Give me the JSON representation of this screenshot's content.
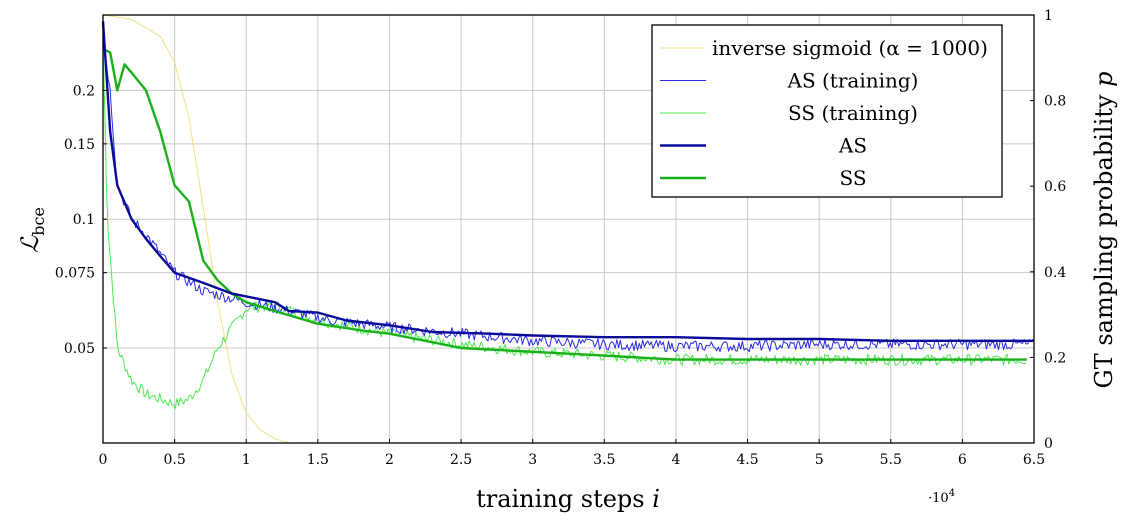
{
  "chart_data": {
    "type": "line",
    "title": "",
    "xlabel": "training steps i",
    "xlabel_plain": "training steps ",
    "xlabel_var": "i",
    "x_multiplier": "·10",
    "x_multiplier_exp": "4",
    "ylabel_left_main": "ℒ",
    "ylabel_left_sub": "bce",
    "ylabel_right": "GT sampling probability p",
    "ylabel_right_plain": "GT sampling probability ",
    "ylabel_right_var": "p",
    "x_range": [
      0,
      6.5
    ],
    "y_left_scale": "log",
    "y_left_range": [
      0.03,
      0.3
    ],
    "y_right_range": [
      0,
      1
    ],
    "x_ticks": [
      0,
      0.5,
      1,
      1.5,
      2,
      2.5,
      3,
      3.5,
      4,
      4.5,
      5,
      5.5,
      6,
      6.5
    ],
    "x_tick_labels": [
      "0",
      "0.5",
      "1",
      "1.5",
      "2",
      "2.5",
      "3",
      "3.5",
      "4",
      "4.5",
      "5",
      "5.5",
      "6",
      "6.5"
    ],
    "y_left_ticks": [
      0.05,
      0.075,
      0.1,
      0.15,
      0.2
    ],
    "y_left_tick_labels": [
      "0.05",
      "0.075",
      "0.1",
      "0.15",
      "0.2"
    ],
    "y_right_ticks": [
      0,
      0.2,
      0.4,
      0.6,
      0.8,
      1
    ],
    "y_right_tick_labels": [
      "0",
      "0.2",
      "0.4",
      "0.6",
      "0.8",
      "1"
    ],
    "grid": true,
    "legend_position": "top-right",
    "legend": [
      {
        "label": "inverse sigmoid (α = 1000)",
        "color": "#f0e080",
        "weight": "thin"
      },
      {
        "label": "AS (training)",
        "color": "#2a2ae8",
        "weight": "thin"
      },
      {
        "label": "SS (training)",
        "color": "#4ee84e",
        "weight": "thin"
      },
      {
        "label": "AS",
        "color": "#0a0a9a",
        "weight": "thick"
      },
      {
        "label": "SS",
        "color": "#1ab01a",
        "weight": "thick"
      }
    ],
    "series": [
      {
        "name": "inverse sigmoid (α = 1000)",
        "axis": "right",
        "color": "#f0e080",
        "alpha": 1000,
        "x": [
          0,
          0.2,
          0.4,
          0.5,
          0.6,
          0.7,
          0.8,
          0.9,
          1.0,
          1.1,
          1.2,
          1.3,
          6.5
        ],
        "values": [
          1.0,
          0.99,
          0.95,
          0.89,
          0.76,
          0.55,
          0.33,
          0.16,
          0.07,
          0.03,
          0.01,
          0.0,
          0.0
        ]
      },
      {
        "name": "AS (training)",
        "axis": "left",
        "color": "#2a2ae8",
        "noisy": true,
        "x": [
          0,
          0.05,
          0.1,
          0.2,
          0.3,
          0.5,
          0.7,
          1.0,
          1.3,
          1.6,
          2.0,
          2.5,
          3.0,
          3.5,
          4.0,
          4.5,
          5.0,
          5.5,
          6.0,
          6.5
        ],
        "values": [
          0.27,
          0.2,
          0.12,
          0.1,
          0.092,
          0.075,
          0.068,
          0.064,
          0.061,
          0.058,
          0.056,
          0.054,
          0.052,
          0.051,
          0.0505,
          0.0505,
          0.051,
          0.051,
          0.051,
          0.051
        ]
      },
      {
        "name": "SS (training)",
        "axis": "left",
        "color": "#4ee84e",
        "noisy": true,
        "x": [
          0,
          0.03,
          0.1,
          0.2,
          0.3,
          0.4,
          0.5,
          0.6,
          0.7,
          0.8,
          1.0,
          1.2,
          1.5,
          2.0,
          2.5,
          3.0,
          3.5,
          4.0,
          4.5,
          5.0,
          5.5,
          6.0,
          6.45
        ],
        "values": [
          0.27,
          0.1,
          0.05,
          0.042,
          0.039,
          0.038,
          0.037,
          0.038,
          0.042,
          0.05,
          0.062,
          0.063,
          0.058,
          0.054,
          0.051,
          0.049,
          0.048,
          0.047,
          0.047,
          0.047,
          0.047,
          0.047,
          0.047
        ]
      },
      {
        "name": "AS",
        "axis": "left",
        "color": "#0a0a9a",
        "x": [
          0,
          0.05,
          0.1,
          0.2,
          0.3,
          0.4,
          0.5,
          0.7,
          0.9,
          1.0,
          1.2,
          1.3,
          1.5,
          1.7,
          1.9,
          2.0,
          2.3,
          2.7,
          3.0,
          3.5,
          4.0,
          4.5,
          5.0,
          5.5,
          6.0,
          6.5
        ],
        "values": [
          0.29,
          0.16,
          0.12,
          0.1,
          0.09,
          0.082,
          0.075,
          0.071,
          0.067,
          0.066,
          0.064,
          0.061,
          0.0605,
          0.058,
          0.057,
          0.0565,
          0.0545,
          0.054,
          0.0535,
          0.053,
          0.053,
          0.0525,
          0.0525,
          0.052,
          0.052,
          0.052
        ]
      },
      {
        "name": "SS",
        "axis": "left",
        "color": "#1ab01a",
        "x": [
          0,
          0.05,
          0.1,
          0.15,
          0.2,
          0.3,
          0.4,
          0.5,
          0.6,
          0.7,
          0.8,
          0.9,
          1.0,
          1.2,
          1.5,
          1.8,
          2.0,
          2.5,
          3.0,
          3.5,
          4.0,
          4.5,
          5.0,
          5.5,
          6.0,
          6.45
        ],
        "values": [
          0.25,
          0.245,
          0.2,
          0.23,
          0.22,
          0.2,
          0.16,
          0.12,
          0.11,
          0.08,
          0.072,
          0.067,
          0.064,
          0.061,
          0.057,
          0.055,
          0.054,
          0.05,
          0.049,
          0.048,
          0.047,
          0.047,
          0.047,
          0.047,
          0.047,
          0.047
        ]
      }
    ]
  }
}
